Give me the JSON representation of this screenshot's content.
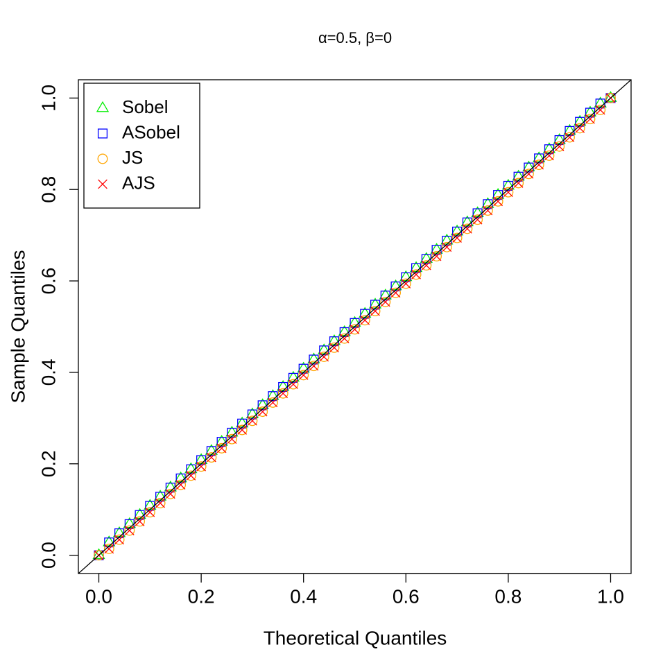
{
  "chart_data": {
    "type": "scatter",
    "title": "α=0.5, β=0",
    "x_label": "Theoretical Quantiles",
    "y_label": "Sample Quantiles",
    "xlim": [
      -0.04,
      1.04
    ],
    "ylim": [
      -0.04,
      1.04
    ],
    "xticks": [
      {
        "value": 0,
        "label": "0.0"
      },
      0.2,
      0.4,
      0.6,
      0.8,
      {
        "value": 1,
        "label": "1.0"
      }
    ],
    "yticks": [
      {
        "value": 0,
        "label": "0.0"
      },
      0.2,
      0.4,
      0.6,
      0.8,
      {
        "value": 1,
        "label": "1.0"
      }
    ],
    "legend": "topleft",
    "x": [
      0,
      0.02,
      0.04,
      0.06,
      0.08,
      0.1,
      0.12,
      0.14,
      0.16,
      0.18,
      0.2,
      0.22,
      0.24,
      0.26,
      0.28,
      0.3,
      0.32,
      0.34,
      0.36,
      0.38,
      0.4,
      0.42,
      0.44,
      0.46,
      0.48,
      0.5,
      0.52,
      0.54,
      0.56,
      0.58,
      0.6,
      0.62,
      0.64,
      0.66,
      0.68,
      0.7,
      0.72,
      0.74,
      0.76,
      0.78,
      0.8,
      0.82,
      0.84,
      0.86,
      0.88,
      0.9,
      0.92,
      0.94,
      0.96,
      0.98,
      1
    ],
    "series": [
      {
        "name": "Sobel",
        "color": "#00ee00",
        "marker": "triangle",
        "values": [
          0,
          0.028,
          0.048,
          0.068,
          0.088,
          0.108,
          0.128,
          0.148,
          0.168,
          0.188,
          0.208,
          0.228,
          0.248,
          0.268,
          0.288,
          0.308,
          0.328,
          0.348,
          0.368,
          0.388,
          0.408,
          0.428,
          0.448,
          0.468,
          0.488,
          0.508,
          0.528,
          0.548,
          0.568,
          0.588,
          0.608,
          0.628,
          0.648,
          0.668,
          0.688,
          0.708,
          0.728,
          0.748,
          0.768,
          0.788,
          0.808,
          0.828,
          0.848,
          0.868,
          0.888,
          0.908,
          0.928,
          0.948,
          0.968,
          0.988,
          1
        ]
      },
      {
        "name": "ASobel",
        "color": "#0000ff",
        "marker": "square",
        "values": [
          0,
          0.028,
          0.048,
          0.068,
          0.088,
          0.108,
          0.128,
          0.148,
          0.168,
          0.188,
          0.208,
          0.228,
          0.248,
          0.268,
          0.288,
          0.308,
          0.328,
          0.348,
          0.368,
          0.388,
          0.408,
          0.428,
          0.448,
          0.468,
          0.488,
          0.508,
          0.528,
          0.548,
          0.568,
          0.588,
          0.608,
          0.628,
          0.648,
          0.668,
          0.688,
          0.708,
          0.728,
          0.748,
          0.768,
          0.788,
          0.808,
          0.828,
          0.848,
          0.868,
          0.888,
          0.908,
          0.928,
          0.948,
          0.968,
          0.988,
          1
        ]
      },
      {
        "name": "JS",
        "color": "#ffa500",
        "marker": "circle",
        "values": [
          0,
          0.014,
          0.034,
          0.054,
          0.074,
          0.094,
          0.114,
          0.134,
          0.154,
          0.174,
          0.194,
          0.214,
          0.234,
          0.254,
          0.274,
          0.294,
          0.314,
          0.334,
          0.354,
          0.374,
          0.394,
          0.414,
          0.434,
          0.454,
          0.474,
          0.494,
          0.514,
          0.534,
          0.554,
          0.574,
          0.594,
          0.614,
          0.634,
          0.654,
          0.674,
          0.694,
          0.714,
          0.734,
          0.754,
          0.774,
          0.794,
          0.814,
          0.834,
          0.854,
          0.874,
          0.894,
          0.914,
          0.934,
          0.954,
          0.974,
          1
        ]
      },
      {
        "name": "AJS",
        "color": "#ff0000",
        "marker": "cross",
        "values": [
          0,
          0.014,
          0.034,
          0.054,
          0.074,
          0.094,
          0.114,
          0.134,
          0.154,
          0.174,
          0.194,
          0.214,
          0.234,
          0.254,
          0.274,
          0.294,
          0.314,
          0.334,
          0.354,
          0.374,
          0.394,
          0.414,
          0.434,
          0.454,
          0.474,
          0.494,
          0.514,
          0.534,
          0.554,
          0.574,
          0.594,
          0.614,
          0.634,
          0.654,
          0.674,
          0.694,
          0.714,
          0.734,
          0.754,
          0.774,
          0.794,
          0.814,
          0.834,
          0.854,
          0.874,
          0.894,
          0.914,
          0.934,
          0.954,
          0.974,
          1
        ]
      }
    ]
  }
}
